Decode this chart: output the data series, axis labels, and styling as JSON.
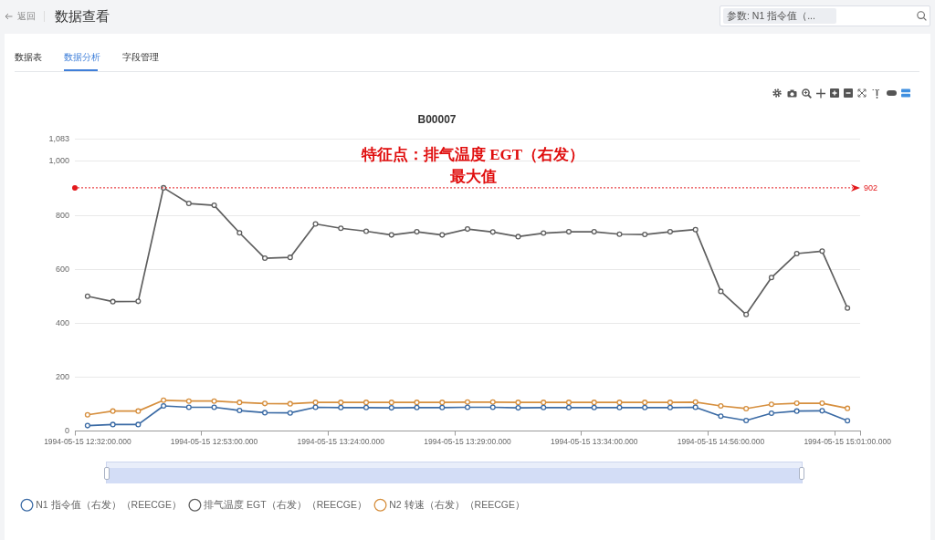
{
  "chart_data": {
    "type": "line",
    "title": "B00007",
    "annotations": [
      "特征点：排气温度 EGT（右发）最大值",
      "返回",
      "数据查看",
      "参数: N1 指令值（...",
      "数据表",
      "数据分析",
      "字段管理"
    ],
    "categories": [
      "1994-05-15 12:32:00.000",
      null,
      null,
      null,
      null,
      "1994-05-15 12:53:00.000",
      null,
      null,
      null,
      null,
      "1994-05-15 13:24:00.000",
      null,
      null,
      null,
      null,
      "1994-05-15 13:29:00.000",
      null,
      null,
      null,
      null,
      "1994-05-15 13:34:00.000",
      null,
      null,
      null,
      null,
      "1994-05-15 14:56:00.000",
      null,
      null,
      null,
      null,
      "1994-05-15 15:01:00.000"
    ],
    "series": [
      {
        "name": "N1 指令值（右发）（REECGE）",
        "color": "#3b6ba5",
        "values": [
          20,
          24,
          24,
          93,
          88,
          88,
          76,
          68,
          67,
          88,
          87,
          87,
          86,
          87,
          87,
          88,
          88,
          86,
          87,
          87,
          87,
          87,
          87,
          87,
          88,
          55,
          39,
          66,
          74,
          75,
          38
        ]
      },
      {
        "name": "排气温度 EGT（右发）（REECGE）",
        "color": "#5f5f5f",
        "values": [
          500,
          480,
          481,
          902,
          844,
          837,
          735,
          641,
          644,
          768,
          752,
          741,
          727,
          739,
          727,
          749,
          738,
          721,
          734,
          739,
          739,
          730,
          729,
          739,
          747,
          518,
          432,
          569,
          658,
          667,
          456
        ]
      },
      {
        "name": "N2 转速（右发）（REECGE）",
        "color": "#d68f3e",
        "values": [
          60,
          74,
          74,
          114,
          111,
          111,
          106,
          102,
          101,
          106,
          106,
          106,
          106,
          106,
          106,
          107,
          107,
          106,
          106,
          106,
          106,
          106,
          106,
          106,
          107,
          93,
          83,
          99,
          103,
          103,
          84
        ]
      }
    ],
    "ylim": [
      0,
      1083
    ],
    "yticks": [
      0,
      200,
      400,
      600,
      800,
      {
        "value": 1000,
        "label": "1,000"
      },
      {
        "value": 1083,
        "label": "1,083"
      }
    ],
    "grid": "y",
    "legend": "bottom left",
    "marker": "circle",
    "line_style": "solid",
    "ref_lines": [
      {
        "axis": "y",
        "value": 902,
        "label": "902",
        "color": "#e3191c",
        "line_style": "dotted"
      }
    ]
  }
}
